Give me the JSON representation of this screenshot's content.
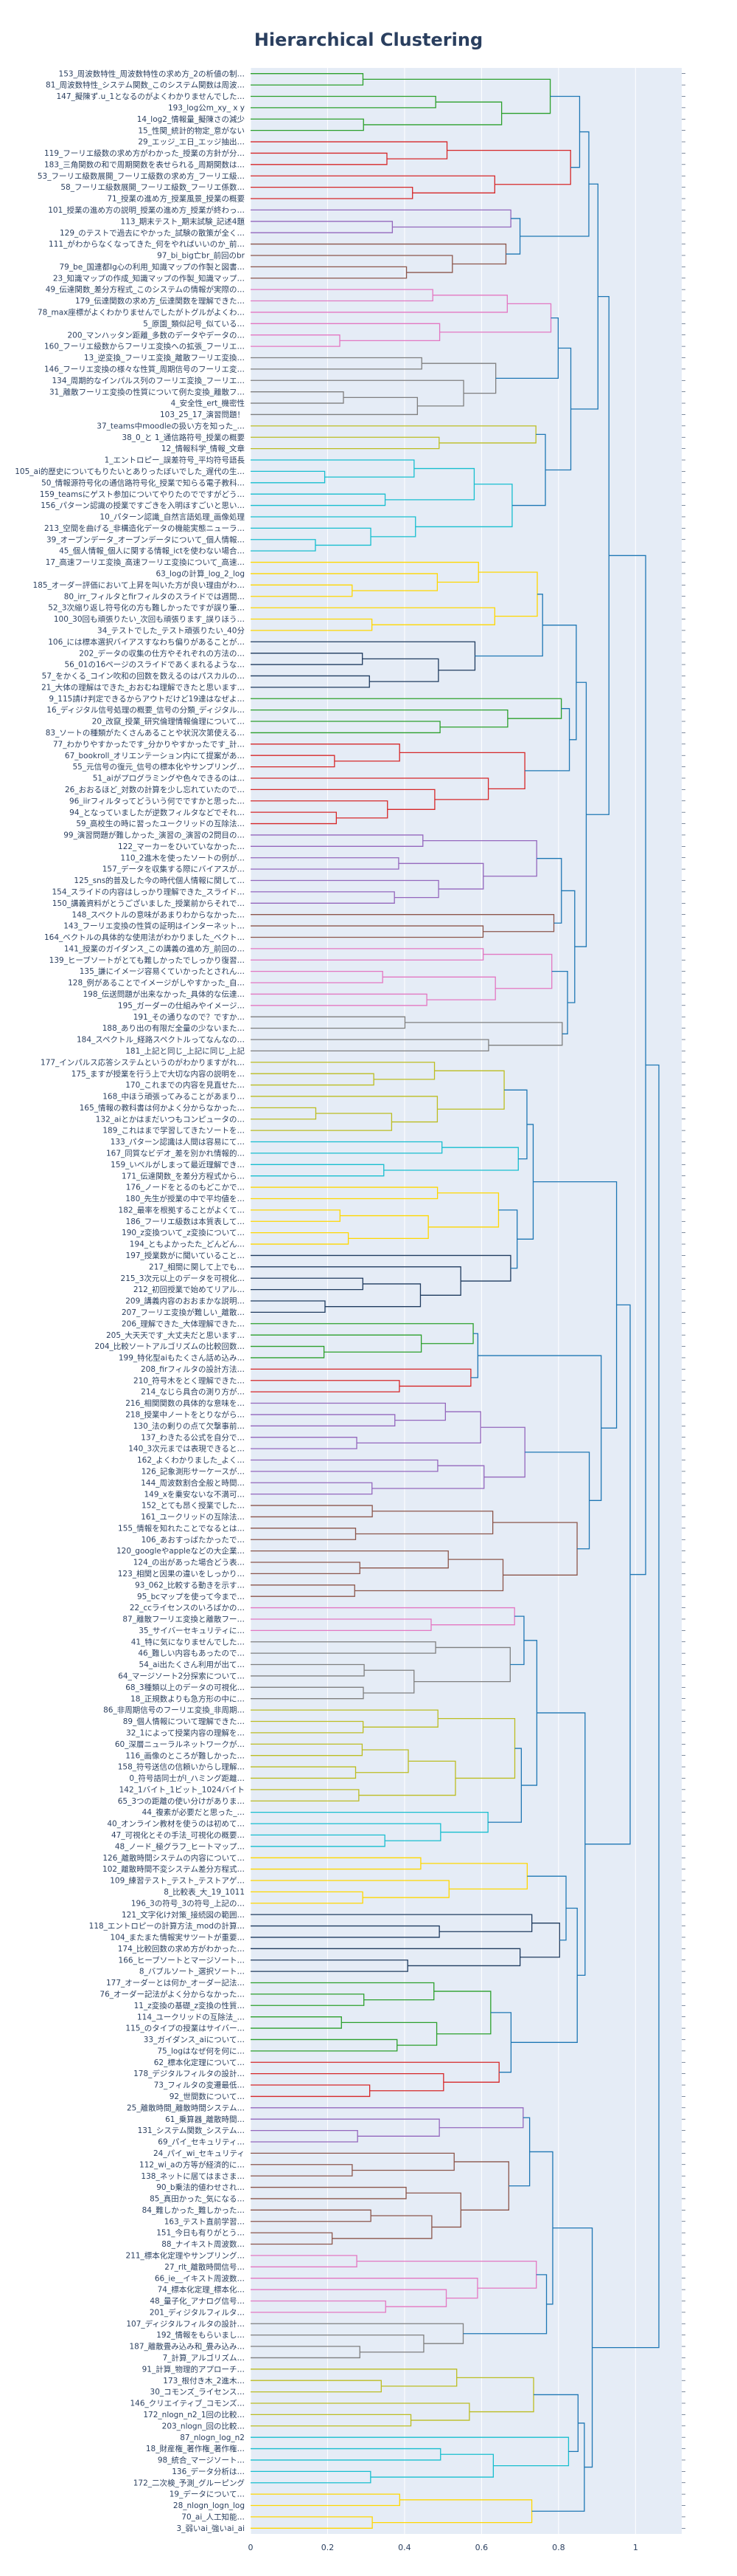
{
  "chart_data": {
    "type": "dendrogram",
    "title": "Hierarchical Clustering",
    "orientation": "horizontal",
    "leaf_side": "left",
    "x_axis": {
      "range": [
        0,
        1.12
      ],
      "ticks": [
        0,
        0.2,
        0.4,
        0.6,
        0.8,
        1
      ],
      "tick_labels": [
        "0",
        "0.2",
        "0.4",
        "0.6",
        "0.8",
        "1"
      ],
      "grid": true
    },
    "link_color_above_threshold": "#1f77b4",
    "cluster_colors": [
      "#2ca02c",
      "#d62728",
      "#9467bd",
      "#8c564b",
      "#e377c2",
      "#7f7f7f",
      "#bcbd22",
      "#17becf",
      "#ffd700",
      "#1f3b5f"
    ],
    "leaves": [
      "153_周波数特性_周波数特性の求め方_2の析値の制…",
      "81_周波数特性_システム関数_このシステム関数は周波…",
      "147_擬陳ず.u_1となるのがよくわかりませんでした…",
      "193_log公m_xy_ x y",
      "14_log2_情報量_擬陳さの減少",
      "15_性関_統計的物定_意がない",
      "29_エッジ_エ日_エッジ抽出…",
      "119_フーリエ級数の求め方がわかった_授業の方針が分…",
      "183_三角関数の和で周期関数を表せられる_周期関数は…",
      "53_フーリエ級数展開_フーリエ級数の求め方_フーリエ級…",
      "58_フーリエ級数展開_フーリエ級数_フーリエ係数…",
      "71_授業の進め方_授業風景_授業の概要",
      "101_授業の進め方の説明_授業の進め方_授業が終わっ…",
      "113_期末テスト_期末試験_記述4題",
      "129_のテストで過去にやかった_試験の散策が全く…",
      "111_がわからなくなってきた_何をやればいいのか_前…",
      "97_bi_big亡br_前回のbr",
      "79_be_国連都Ig心の利用_知識マップの作製と図書…",
      "23_知識マップの作成_知識マップの作製_知識マップ…",
      "49_伝達関数_差分方程式_このシステムの情報が実際の…",
      "179_伝達関数の求め方_伝達関数を理解できた…",
      "78_max座標がよくわかりませんでしたがトグルがよくわ…",
      "5_原園_類似記号_似ている…",
      "200_マンハッタン距離_多数のデータやデータの…",
      "160_フーリエ級数からフーリエ変換への拡張_フーリエ…",
      "13_逆変換_フーリエ変換_離散フーリエ変換…",
      "146_フーリエ変換の様々な性質_周期信号のフーリエ変…",
      "134_周期的なインパルス列のフーリエ変換_フーリエ…",
      "31_離散フーリエ変換の性質について例た変換_離散フ…",
      "4_安全性_ert_機密性",
      "103_25_17_演習問題！",
      "37_teams中moodleの扱い方を知った_…",
      "38_0_と 1_通信路符号_授業の概要",
      "12_情報科学_情報_文章",
      "1_エントロピー_誤差符号_平均符号語長",
      "105_ai的歴史についてもりたいとありったぼいでした_遅代の生…",
      "50_情報源符号化の通信路符号化_授業で知らる電子教科…",
      "159_teamsにゲスト参加についてやりたのでですがどう…",
      "156_パターン認識の授業ですごきを入明ほすごいと思い…",
      "10_パターン認識_自然言語処理_画像処理",
      "213_空間を曲げる_非構造化データの機能実態ニューラ…",
      "39_オーブンデータ_オーブンデータについて_個人情報…",
      "45_個人情報_個人に関する情報_ictを使わない場合…",
      "17_高速フーリエ変換_高速フーリエ変換について_高速…",
      "63_logの計算_log_2_log",
      "185_オーダー評価において上昇を叫いた方が良い理由がわ…",
      "80_irr_フィルタとfirフィルタのスライドでは週間…",
      "52_3次縮り返し符号化の方も難しかったですが誤り筆…",
      "100_30回も頑張りたい_次回も頑張ります_誤りほう…",
      "34_テストでした_テスト頑張りたい_40分",
      "106_には標本選択バイアスすなわち偏りがあることが…",
      "202_データの収集の仕方やそれぞれの方法の…",
      "56_01の16ページのスライドであくまれるような…",
      "57_をかくる_コイン吹和の回数を数えるのはパスカルの…",
      "21_大体の理解はできた_おおむね理解できたと思います…",
      "9_115請け判定できるからアウトだけど19達はなぜよ…",
      "16_ディジタル信号処理の概要_信号の分類_ディジタル…",
      "20_改竄_授業_研究倫理情報倫理について…",
      "83_ソートの種類がたくさんあることや状況次第使える…",
      "77_わかりやすかったです_分かりやすかったです_計…",
      "67_bookroll_オリエンテーション内にて提案があ…",
      "55_元信号の復元_信号の標本化やサンプリング…",
      "51_aiがプログラミングや色々できるのは…",
      "26_おおるほど_対数の計算を少し忘れていたので…",
      "96_iirフィルタってどういう何でですかと思った…",
      "94_となっていましたが逆数フィルタなどでそれ…",
      "59_高校生の時に習ったユークリッドの互除法…",
      "99_演習問題が難しかった_演習の_演習の2問目の…",
      "122_マーカーをひいていなかった…",
      "110_2進木を使ったソートの例が…",
      "157_データを収集する際にバイアスが…",
      "125_sns的普及した今の時代個人情報に関して…",
      "154_スライドの内容はしっかり理解できた_スライド…",
      "150_講義資料がとうございました_授業前からそれで…",
      "148_スペクトルの意味があまりわからなかった…",
      "143_フーリエ変換の性質の証明はインターネット…",
      "164_ベクトルの具体的な使用法がわかりました_ベクト…",
      "141_授業のガイダンス_この講義の進め方_前回の…",
      "139_ヒーブソートがとても難しかったでしっかり復習…",
      "135_謙にイメージ容易くていかったとされん…",
      "128_例があることでイメージがしやすかった_自…",
      "198_伝送問題が出来なかった_具体的な伝達…",
      "195_ガーダーの仕組みやイメージ…",
      "191_その通りなので？ですか…",
      "188_あり出の有限だ全量の少ないまた…",
      "184_スペクトル_経路スペクトルってなんなの…",
      "181_上記と同じ_上記に同じ_上記",
      "177_インパルス応答システムというのがわかりますがれ…",
      "175_ますが授業を行う上で大切な内容の説明を…",
      "170_これまでの内容を見直せた…",
      "168_中ほう頑張ってみることがあまり…",
      "165_情報の教科書は何かよく分からなかった…",
      "132_aiとかはまだいつもコンピュータの…",
      "189_これはまで学習してきたソートを…",
      "133_パターン認識は人間は容易にて…",
      "167_同質なビデオ_差を別かれ情報的…",
      "159_いべルがしまって最近理解でき…",
      "171_伝達関数_を差分方程式から…",
      "176_ノードをとるのもどこかで…",
      "180_先生が授業の中で平均値を…",
      "182_最率を根拠することがよくて…",
      "186_フーリエ級数は本質表して…",
      "190_z変換ついて_z変換について…",
      "194_ともよかったた_どんどん…",
      "197_授業数がに聞いていること…",
      "217_相間に関して上でも…",
      "215_3次元以上のデータを可視化…",
      "212_初回授業で始めてリアル…",
      "209_講義内容のおおまかな説明…",
      "207_フーリエ変換が難しい_離散…",
      "206_理解できた_大体理解できた…",
      "205_大天天です_大丈夫だと思います…",
      "204_比較ソートアルゴリズムの比較回数…",
      "199_特化型aiもたくさん話め込み…",
      "208_firフィルタの設計方法…",
      "210_符号木をとく理解できた…",
      "214_なじら具合の測り方が…",
      "216_相関関数の具体的な意味を…",
      "218_授業中ノートをとりながら…",
      "130_法の剰りの点て欠撃事前…",
      "137_わきたる公式を自分で…",
      "140_3次元までは表現できると…",
      "162_よくわかりました_よく…",
      "126_記象測形サーケースが…",
      "144_周波数割合全般と時間…",
      "149_xを乗安ないな不満可…",
      "152_とても昂く授業でした…",
      "161_ユークリッドの互除法…",
      "155_情報を知れたことでなるとは…",
      "106_あおすっばたかったで…",
      "120_googleやappleなどの大企業…",
      "124_の出があった場合どう表…",
      "123_相関と因果の違いをしっかり…",
      "93_062_比較する動きを示す…",
      "95_bcマップを使って今まで…",
      "22_ccライセンスのいろばかの…",
      "87_離散フーリエ変換と離散フー…",
      "35_サイバーセキュリティに…",
      "41_特に気になりませんでした…",
      "46_難しい内容もあったので…",
      "54_ai出たくさん利用が出て…",
      "64_マージソート2分探索について…",
      "68_3種類以上のデータの可視化…",
      "18_正規数よりも急方形の中に…",
      "86_非周期信号のフーリエ変換_非周期…",
      "89_個人情報について理解できた…",
      "32_1によって授業内容の理解を…",
      "60_深層ニューラルネットワークが…",
      "116_画像のところが難しかった…",
      "158_符号送信の信頼いからし理解…",
      "0_符号語同士がl_ハミング距離…",
      "142_1バイト_1ビット_1024バイト",
      "65_3つの距離の使い分けがありま…",
      "44_複素が必要だと思った_…",
      "40_オンライン教材を使うのは初めて…",
      "47_可視化とその手法_可視化の概要…",
      "48_ノード_極グラフ_ヒートマップ…",
      "126_離散時間システムの内容について…",
      "102_離散時間不変システム差分方程式…",
      "109_練習テスト_テスト_テストアゲ…",
      "8_比較表_大_19_1011",
      "196_3の符号_3の符号_上記の…",
      "121_文字化け対策_接続図の範囲…",
      "118_エントロピーの計算方法_modの計算…",
      "104_またまた情報実サツートが重要…",
      "174_比較回数の求め方がわかった…",
      "166_ヒーブソートとマージソート…",
      "8_バブルソート_選択ソート…",
      "177_オーダーとは何か_オーダー記法…",
      "76_オーダー記法がよく分からなかった…",
      "11_z変換の基礎_z変換の性質…",
      "114_ユークリッドの互除法_…",
      "115_のタイプの授業はサイバー…",
      "33_ガイダンス_aiについて…",
      "75_logはなぜ何を何に…",
      "62_標本化定理について…",
      "178_デジタルフィルタの設計…",
      "73_フィルタの変遷最低…",
      "92_世間数について…",
      "25_離散時間_離散時間システム…",
      "61_乗算器_離散時間…",
      "131_システム関数_システム…",
      "69_パイ_セキュリティ…",
      "24_パイ_wi_セキュリティ",
      "112_wi_aの方等が経済的に…",
      "138_ネットに居てはまさま…",
      "90_b乗法的値わせされ…",
      "85_真田かった_気になる…",
      "84_難しかった_難しかった…",
      "163_テスト直前学習…",
      "151_今日も有りがとう…",
      "88_ナイキスト周波数…",
      "211_標本化定理やサンプリング…",
      "27_rlt_離散時間信号…",
      "66_ie__イキスト周波数…",
      "74_標本化定理_標本化…",
      "48_量子化_アナログ信号…",
      "201_ディジタルフィルタ…",
      "107_ディジタルフィルタの設計…",
      "192_情報をもらいまし…",
      "187_離散畳み込み和_畳み込み…",
      "7_計算_アルゴリズム…",
      "91_計算_物理的アプローチ…",
      "173_根付き木_2進木…",
      "30_コモンズ_ライセンス…",
      "146_クリエイティブ_コモンズ…",
      "172_nlogn_n2_1回の比較…",
      "203_nlogn_回の比較…",
      "87_nlogn_log_n2",
      "18_財産権_著作権_著作権…",
      "98_統合_マージソート…",
      "136_データ分析は…",
      "172_二次検_予測_グルーピング",
      "19_データについて…",
      "28_nlogn_logn_log",
      "70_ai_人工知能…",
      "3_弱いai_強いai_ai"
    ]
  }
}
